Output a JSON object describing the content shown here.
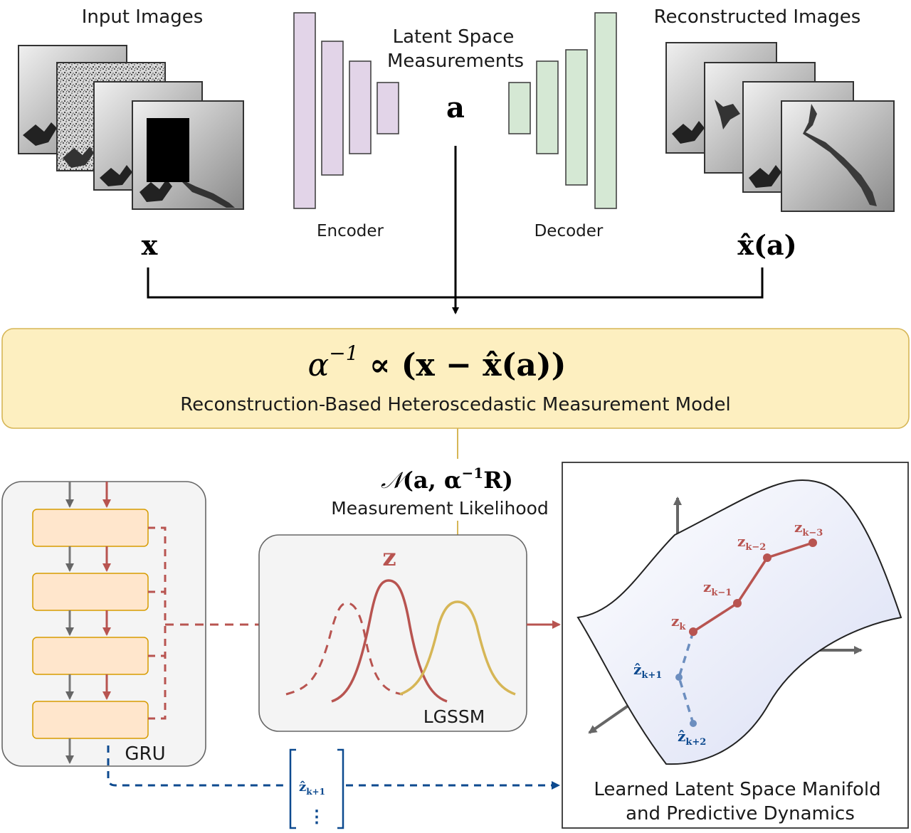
{
  "top": {
    "input_title": "Input Images",
    "input_symbol": "x",
    "encoder_label": "Encoder",
    "latent_title_line1": "Latent Space",
    "latent_title_line2": "Measurements",
    "latent_symbol": "a",
    "decoder_label": "Decoder",
    "recon_title": "Reconstructed Images",
    "recon_symbol": "x̂(a)"
  },
  "measurement_model": {
    "formula_alpha": "α",
    "formula_exp": "−1",
    "formula_rest": " ∝ (x − x̂(a))",
    "caption": "Reconstruction-Based Heteroscedastic Measurement Model"
  },
  "likelihood": {
    "formula_n": "𝒩",
    "formula_args": "(a, α",
    "formula_exp": "−1",
    "formula_tail": "R)",
    "caption": "Measurement Likelihood"
  },
  "gru": {
    "label": "GRU"
  },
  "lgssm": {
    "label": "LGSSM",
    "z_symbol": "z"
  },
  "prediction_vector": {
    "entry_main": "ẑ",
    "entry_sub": "k+1",
    "dots": "⋮"
  },
  "manifold": {
    "caption_line1": "Learned Latent Space Manifold",
    "caption_line2": "and Predictive Dynamics",
    "points": [
      {
        "main": "z",
        "sub": "k−3"
      },
      {
        "main": "z",
        "sub": "k−2"
      },
      {
        "main": "z",
        "sub": "k−1"
      },
      {
        "main": "z",
        "sub": "k"
      },
      {
        "main": "ẑ",
        "sub": "k+1"
      },
      {
        "main": "ẑ",
        "sub": "k+2"
      }
    ]
  },
  "colors": {
    "encoder": "#e2d4e8",
    "decoder": "#d5e8d4",
    "measurement_box": "#fdefc0",
    "gold": "#d6b656",
    "red": "#b85450",
    "blue": "#0d4a8f",
    "light_blue": "#6c8ebf",
    "gru_cell": "#ffe6cc",
    "panel": "#f4f4f4"
  }
}
